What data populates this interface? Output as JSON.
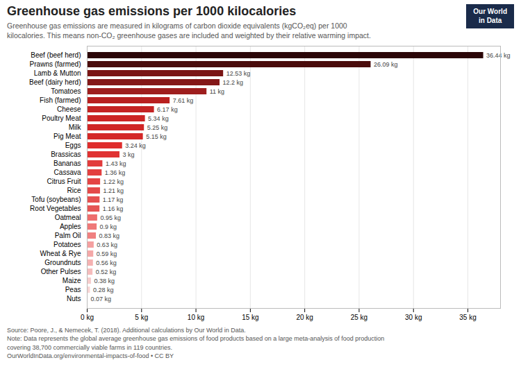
{
  "chart_data": {
    "type": "bar",
    "orientation": "horizontal",
    "title": "Greenhouse gas emissions per 1000 kilocalories",
    "subtitle": "Greenhouse gas emissions are measured in kilograms of carbon dioxide equivalents (kgCO₂eq) per 1000\nkilocalories. This means non-CO₂ greenhouse gases are included and weighted by their relative warming impact.",
    "source": "Source: Poore, J., & Nemecek, T. (2018). Additional calculations by Our World in Data.\nNote: Data represents the global average greenhouse gas emissions of food products based on a large meta-analysis of food production\ncovering 38,700 commercially viable farms in 119 countries.\nOurWorldInData.org/environmental-impacts-of-food • CC BY",
    "annotations": [
      {
        "text": "Our World\nin Data",
        "color": "#1a2b4a"
      }
    ],
    "categories": [
      "Beef (beef herd)",
      "Prawns (farmed)",
      "Lamb & Mutton",
      "Beef (dairy herd)",
      "Tomatoes",
      "Fish (farmed)",
      "Cheese",
      "Poultry Meat",
      "Milk",
      "Pig Meat",
      "Eggs",
      "Brassicas",
      "Bananas",
      "Cassava",
      "Citrus Fruit",
      "Rice",
      "Tofu (soybeans)",
      "Root Vegetables",
      "Oatmeal",
      "Apples",
      "Palm Oil",
      "Potatoes",
      "Wheat & Rye",
      "Groundnuts",
      "Other Pulses",
      "Maize",
      "Peas",
      "Nuts"
    ],
    "values": [
      36.44,
      26.09,
      12.53,
      12.2,
      11.0,
      7.61,
      6.17,
      5.34,
      5.25,
      5.15,
      3.24,
      3.0,
      1.43,
      1.36,
      1.22,
      1.21,
      1.17,
      1.16,
      0.95,
      0.9,
      0.83,
      0.63,
      0.59,
      0.56,
      0.52,
      0.38,
      0.28,
      0.07
    ],
    "value_labels": [
      "36.44 kg",
      "26.09 kg",
      "12.53 kg",
      "12.2 kg",
      "11 kg",
      "7.61 kg",
      "6.17 kg",
      "5.34 kg",
      "5.25 kg",
      "5.15 kg",
      "3.24 kg",
      "3 kg",
      "1.43 kg",
      "1.36 kg",
      "1.22 kg",
      "1.21 kg",
      "1.17 kg",
      "1.16 kg",
      "0.95 kg",
      "0.9 kg",
      "0.83 kg",
      "0.63 kg",
      "0.59 kg",
      "0.56 kg",
      "0.52 kg",
      "0.38 kg",
      "0.28 kg",
      "0.07 kg"
    ],
    "colors": [
      "#2b0608",
      "#4a0c0c",
      "#7a1515",
      "#841818",
      "#9e1e1e",
      "#b82020",
      "#c42323",
      "#cc2424",
      "#d02626",
      "#d42828",
      "#df2e2e",
      "#e03232",
      "#e23c3c",
      "#e34040",
      "#e44545",
      "#e44a4a",
      "#e55050",
      "#e55555",
      "#ee6e6e",
      "#ef7878",
      "#f08080",
      "#f4a0a0",
      "#f4a8a8",
      "#f5b2b2",
      "#f5bcbc",
      "#f6cccc",
      "#f7d4d4",
      "#fae8e8"
    ],
    "xlim": [
      0,
      38
    ],
    "xticks": [
      {
        "value": 0,
        "label": "0 kg"
      },
      {
        "value": 5,
        "label": "5 kg"
      },
      {
        "value": 10,
        "label": "10 kg"
      },
      {
        "value": 15,
        "label": "15 kg"
      },
      {
        "value": 20,
        "label": "20 kg"
      },
      {
        "value": 25,
        "label": "25 kg"
      },
      {
        "value": 30,
        "label": "30 kg"
      },
      {
        "value": 35,
        "label": "35 kg"
      }
    ],
    "grid": true,
    "data_labels": true
  }
}
